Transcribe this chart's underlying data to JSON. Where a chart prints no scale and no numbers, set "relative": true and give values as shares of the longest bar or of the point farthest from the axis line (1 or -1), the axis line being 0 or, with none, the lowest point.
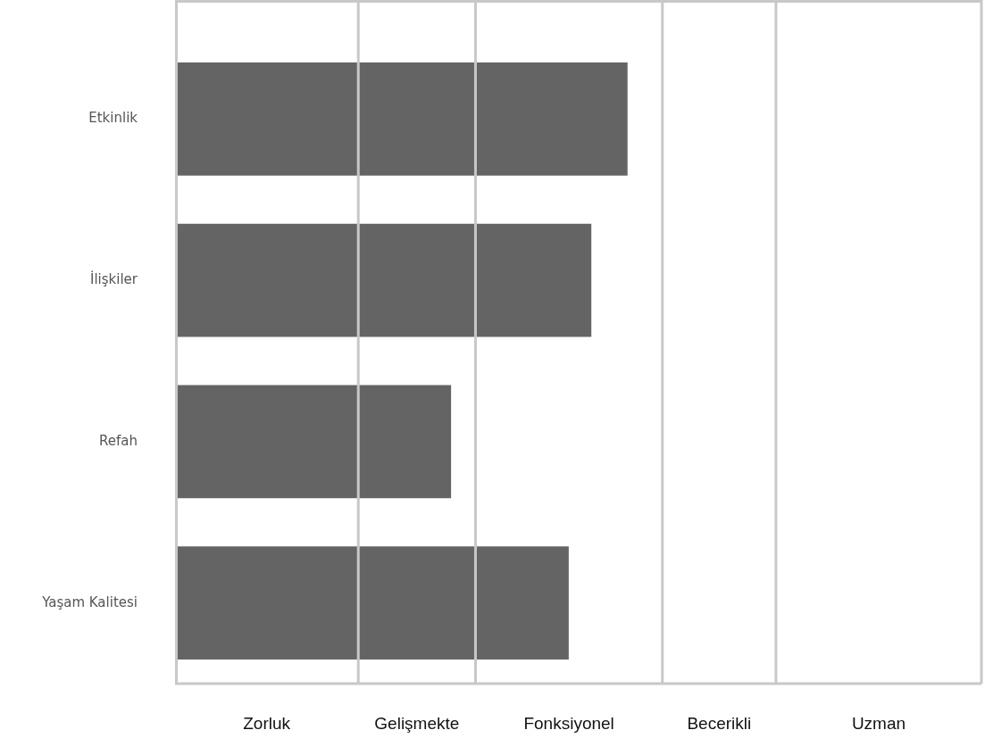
{
  "chart_data": {
    "type": "bar",
    "orientation": "horizontal",
    "relative": true,
    "categories": [
      "Etkinlik",
      "İlişkiler",
      "Refah",
      "Yaşam Kalitesi"
    ],
    "values": [
      1,
      0.92,
      0.61,
      0.87
    ],
    "color": "#646464",
    "ref_lines": [
      {
        "axis": "x",
        "value": 0.405,
        "color": "#c8c8c8"
      },
      {
        "axis": "x",
        "value": 0.664,
        "color": "#c8c8c8"
      },
      {
        "axis": "x",
        "value": 1.077,
        "color": "#c8c8c8"
      },
      {
        "axis": "x",
        "value": 1.328,
        "color": "#c8c8c8"
      },
      {
        "axis": "x",
        "value": 1.782,
        "color": "#c8c8c8"
      }
    ],
    "annotations": [
      "Zorluk",
      "Gelişmekte",
      "Fonksiyonel",
      "Becerikli",
      "Uzman"
    ]
  }
}
